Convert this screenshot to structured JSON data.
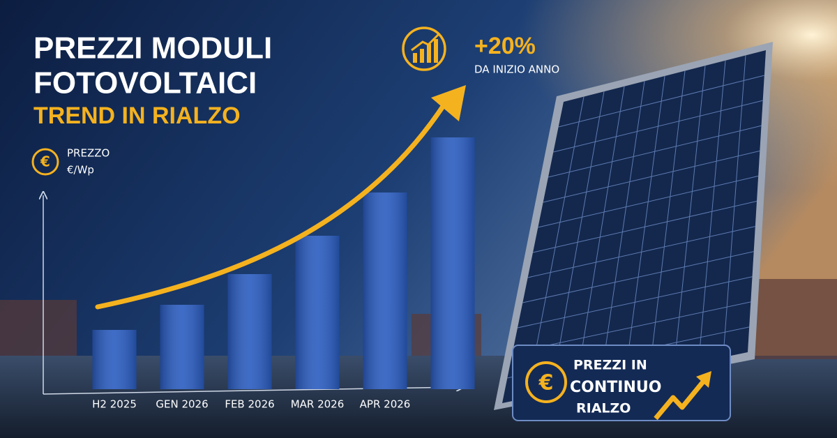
{
  "chart_data": {
    "type": "bar",
    "title": [
      "PREZZI MODULI",
      "FOTOVOLTAICI"
    ],
    "subtitle": "TREND IN RIALZO",
    "y_label": [
      "PREZZO",
      "€/Wp"
    ],
    "categories": [
      "H2 2025",
      "GEN 2026",
      "FEB 2026",
      "MAR 2026",
      "APR 2026",
      null
    ],
    "values": [
      85,
      121,
      165,
      220,
      282,
      361
    ],
    "color": "#2a5cc0",
    "ylim": [
      0,
      380
    ],
    "annotations": [
      "+20%",
      "DA INIZIO ANNO"
    ],
    "badge": [
      "PREZZI IN",
      "CONTINUO",
      "RIALZO"
    ]
  }
}
